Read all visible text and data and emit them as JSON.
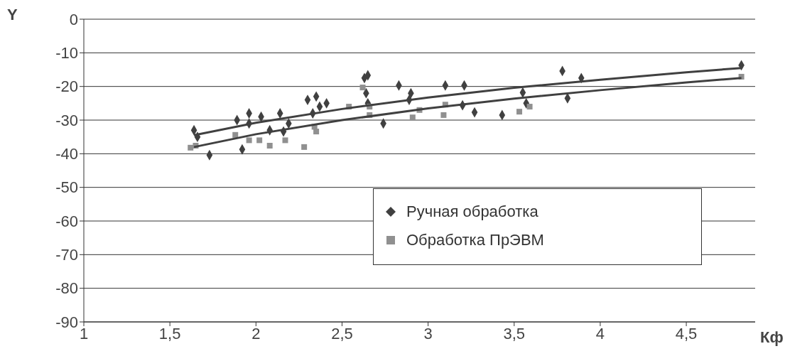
{
  "chart_data": {
    "type": "scatter",
    "xlabel": "Кф",
    "ylabel": "Y",
    "xlim": [
      1,
      4.9
    ],
    "xticks": [
      1,
      {
        "value": 1.5,
        "label": "1,5"
      },
      2,
      {
        "value": 2.5,
        "label": "2,5"
      },
      3,
      {
        "value": 3.5,
        "label": "3,5"
      },
      4,
      {
        "value": 4.5,
        "label": "4,5"
      }
    ],
    "ylim": [
      -90,
      0
    ],
    "yticks": [
      -90,
      -80,
      -70,
      -60,
      -50,
      -40,
      -30,
      -20,
      -10,
      0
    ],
    "grid": "y",
    "legend": "center right",
    "series": [
      {
        "name": "Ручная обработка",
        "color": "#404040",
        "marker": "diamond",
        "x": [
          1.64,
          1.66,
          1.73,
          1.89,
          1.92,
          1.96,
          1.96,
          2.03,
          2.08,
          2.14,
          2.16,
          2.19,
          2.3,
          2.35,
          2.33,
          2.37,
          2.41,
          2.63,
          2.65,
          2.64,
          2.65,
          2.74,
          2.83,
          2.89,
          2.9,
          3.1,
          3.2,
          3.21,
          3.27,
          3.43,
          3.55,
          3.57,
          3.78,
          3.81,
          3.89,
          4.82
        ],
        "values": [
          -33,
          -35,
          -40.4,
          -30,
          -38.7,
          -28,
          -31,
          -29,
          -33,
          -28,
          -33.4,
          -31,
          -24,
          -23,
          -28,
          -26,
          -25,
          -17.5,
          -16.7,
          -22,
          -25,
          -31,
          -19.7,
          -24,
          -22,
          -19.7,
          -25.6,
          -19.7,
          -27.7,
          -28.5,
          -21.8,
          -25,
          -15.4,
          -23.5,
          -17.5,
          -13.7
        ]
      },
      {
        "name": "Обработка ПрЭВМ",
        "color": "#909090",
        "marker": "square",
        "x": [
          1.62,
          1.65,
          1.88,
          1.96,
          2.02,
          2.08,
          2.17,
          2.28,
          2.35,
          2.34,
          2.54,
          2.62,
          2.66,
          2.66,
          2.91,
          2.95,
          3.1,
          3.09,
          3.53,
          3.59,
          4.82
        ],
        "values": [
          -38.2,
          -37.6,
          -34.4,
          -36,
          -36,
          -37.6,
          -36,
          -38,
          -33.4,
          -32,
          -26,
          -20.3,
          -26,
          -28.5,
          -29.2,
          -27,
          -25.4,
          -28.5,
          -27.5,
          -26,
          -17.1
        ]
      },
      {
        "type": "line",
        "color": "#404040",
        "marker": "none",
        "x": [
          1.64,
          2,
          2.5,
          3,
          3.5,
          4,
          4.5,
          4.82
        ],
        "values": [
          -34.5,
          -30.8,
          -26.7,
          -23.3,
          -20.4,
          -18,
          -15.8,
          -14.5
        ]
      },
      {
        "type": "line",
        "color": "#404040",
        "marker": "none",
        "x": [
          1.64,
          2,
          2.5,
          3,
          3.5,
          4,
          4.5,
          4.82
        ],
        "values": [
          -38,
          -34.2,
          -30,
          -26.5,
          -23.6,
          -21.1,
          -18.8,
          -17.5
        ]
      }
    ]
  }
}
